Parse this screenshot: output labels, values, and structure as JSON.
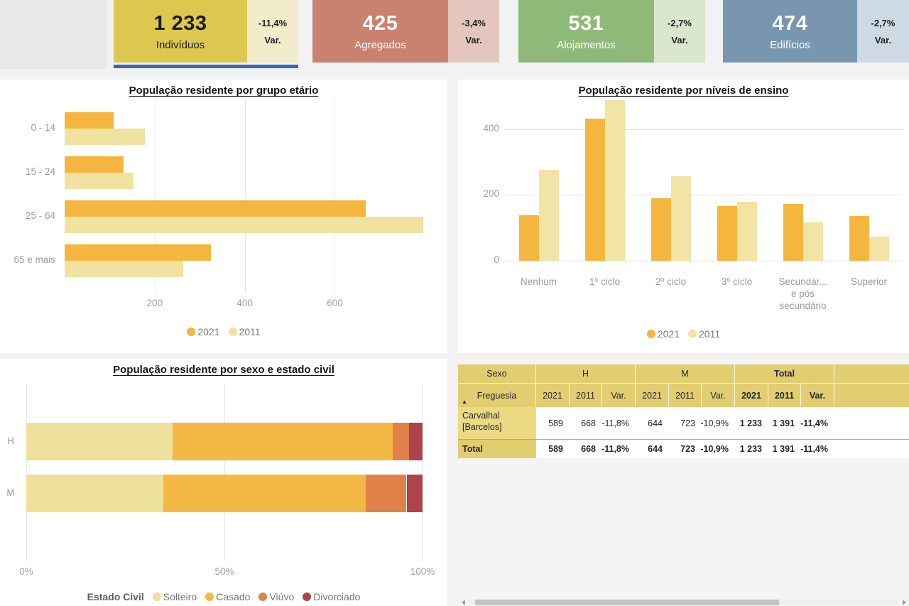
{
  "kpi": {
    "selected_underline_color": "#3a68b2",
    "cards": [
      {
        "value": "1 233",
        "label": "Indivíduos",
        "var_value": "-11,4%",
        "var_label": "Var.",
        "main_bg": "#dcc84f",
        "main_text": "#1c1c1c",
        "var_bg": "#f1ecca",
        "selected": true
      },
      {
        "value": "425",
        "label": "Agregados",
        "var_value": "-3,4%",
        "var_label": "Var.",
        "main_bg": "#c98170",
        "main_text": "#ffffff",
        "var_bg": "#e3c6be",
        "selected": false
      },
      {
        "value": "531",
        "label": "Alojamentos",
        "var_value": "-2,7%",
        "var_label": "Var.",
        "main_bg": "#8fb979",
        "main_text": "#ffffff",
        "var_bg": "#dae6ce",
        "selected": false
      },
      {
        "value": "474",
        "label": "Edifícios",
        "var_value": "-2,7%",
        "var_label": "Var.",
        "main_bg": "#7896b0",
        "main_text": "#ffffff",
        "var_bg": "#cedae3",
        "selected": false
      }
    ]
  },
  "chart_data": [
    {
      "id": "age",
      "type": "bar",
      "orientation": "horizontal",
      "title": "População residente por grupo etário",
      "categories": [
        "0 - 14",
        "15 - 24",
        "25 - 64",
        "65 e mais"
      ],
      "series": [
        {
          "name": "2021",
          "color": "#f4b63f",
          "values": [
            109,
            131,
            668,
            325
          ]
        },
        {
          "name": "2011",
          "color": "#f0e3a2",
          "values": [
            178,
            153,
            796,
            264
          ]
        }
      ],
      "x_ticks": [
        200,
        400,
        600
      ],
      "xlim": [
        0,
        850
      ],
      "grid": true,
      "legend_position": "bottom"
    },
    {
      "id": "education",
      "type": "bar",
      "orientation": "vertical",
      "title": "População residente por níveis de ensino",
      "categories": [
        "Nenhum",
        "1º ciclo",
        "2º ciclo",
        "3º ciclo",
        "Secundár...\ne pós\nsecundário",
        "Superior"
      ],
      "series": [
        {
          "name": "2021",
          "color": "#f4b63f",
          "values": [
            138,
            432,
            190,
            166,
            172,
            135
          ]
        },
        {
          "name": "2011",
          "color": "#f1e4a6",
          "values": [
            277,
            488,
            257,
            180,
            116,
            73
          ]
        }
      ],
      "y_ticks": [
        0,
        200,
        400
      ],
      "ylim": [
        0,
        490
      ],
      "grid": true,
      "legend_position": "bottom"
    },
    {
      "id": "civil",
      "type": "bar",
      "subtype": "stacked-100pct",
      "orientation": "horizontal",
      "title": "População residente por sexo e estado civil",
      "categories": [
        "H",
        "M"
      ],
      "legend_title": "Estado Civil",
      "segments": [
        "Solteiro",
        "Casado",
        "Viúvo",
        "Divorciado"
      ],
      "segment_colors": [
        "#ede19b",
        "#f4b844",
        "#e0814a",
        "#b0424b"
      ],
      "rows_pct": [
        [
          36.9,
          55.6,
          4.1,
          3.4
        ],
        [
          34.5,
          51.2,
          10.3,
          4.0
        ]
      ],
      "x_ticks": [
        "0%",
        "50%",
        "100%"
      ],
      "legend_position": "bottom"
    },
    {
      "id": "sex-table",
      "type": "table",
      "group_headers": [
        "Sexo",
        "H",
        "M",
        "Total"
      ],
      "col_headers": [
        "Freguesia",
        "2021",
        "2011",
        "Var.",
        "2021",
        "2011",
        "Var.",
        "2021",
        "2011",
        "Var."
      ],
      "rows": [
        {
          "label": "Carvalhal [Barcelos]",
          "values": [
            "589",
            "668",
            "-11,8%",
            "644",
            "723",
            "-10,9%",
            "1 233",
            "1 391",
            "-11,4%"
          ]
        }
      ],
      "total_row": {
        "label": "Total",
        "values": [
          "589",
          "668",
          "-11,8%",
          "644",
          "723",
          "-10,9%",
          "1 233",
          "1 391",
          "-11,4%"
        ]
      },
      "header_bg": "#e3cd71",
      "label_cell_bg": "#ecd984"
    }
  ]
}
